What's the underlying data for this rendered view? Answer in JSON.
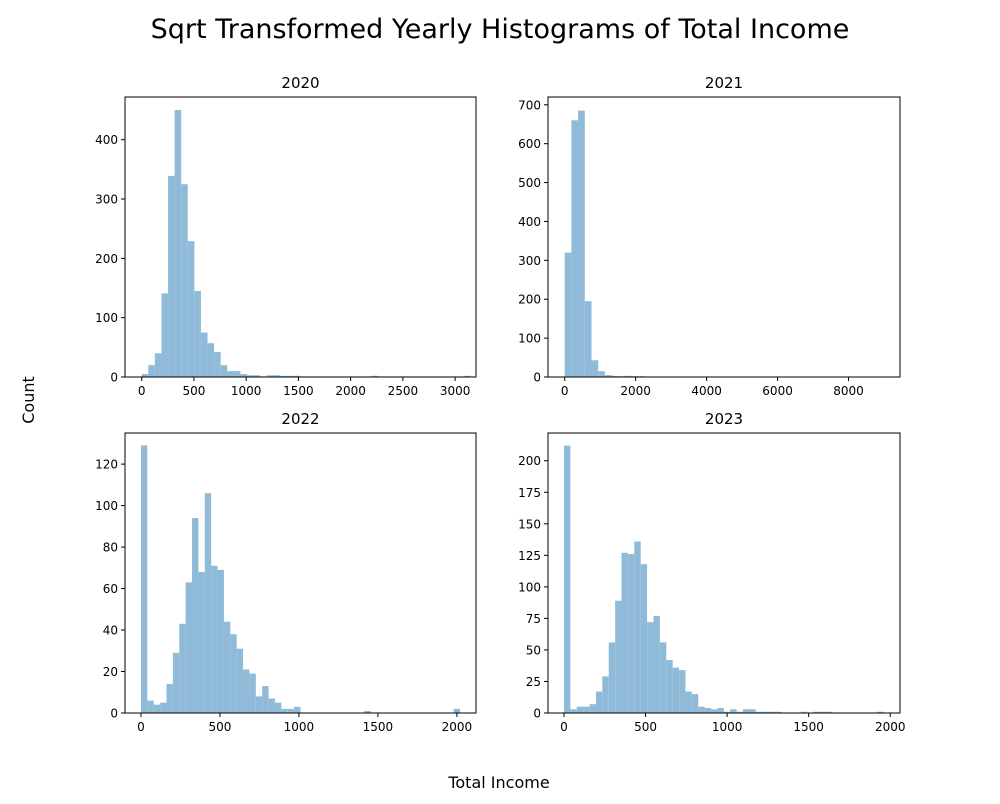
{
  "figure": {
    "title": "Sqrt Transformed Yearly Histograms of Total Income",
    "xlabel": "Total Income",
    "ylabel": "Count",
    "bar_color": "#8fbbd9"
  },
  "chart_data": [
    {
      "type": "bar",
      "title": "2020",
      "xlim": [
        -160,
        3200
      ],
      "ylim": [
        0,
        472
      ],
      "xticks": [
        0,
        500,
        1000,
        1500,
        2000,
        2500,
        3000
      ],
      "yticks": [
        0,
        100,
        200,
        300,
        400
      ],
      "bin_start": 0,
      "bin_width": 63,
      "values": [
        5,
        20,
        40,
        141,
        339,
        450,
        325,
        229,
        145,
        75,
        57,
        42,
        20,
        10,
        10,
        5,
        3,
        3,
        1,
        3,
        3,
        2,
        2,
        2,
        1,
        1,
        1,
        1,
        1,
        1,
        1,
        1,
        1,
        1,
        1,
        2,
        1,
        1,
        1,
        1,
        1,
        1,
        1,
        1,
        1,
        1,
        1,
        1,
        1,
        2
      ]
    },
    {
      "type": "bar",
      "title": "2021",
      "xlim": [
        -470,
        9450
      ],
      "ylim": [
        0,
        720
      ],
      "xticks": [
        0,
        2000,
        4000,
        6000,
        8000
      ],
      "yticks": [
        0,
        100,
        200,
        300,
        400,
        500,
        600,
        700
      ],
      "bin_start": 0,
      "bin_width": 189,
      "values": [
        320,
        660,
        685,
        195,
        43,
        15,
        5,
        3,
        2,
        3,
        2,
        2,
        1,
        1,
        1,
        1,
        1,
        1,
        1,
        1,
        1,
        1,
        1,
        1,
        1,
        1,
        1,
        1,
        1,
        1,
        1,
        1,
        1,
        1,
        1,
        1,
        1,
        1,
        1,
        1,
        1,
        1,
        1,
        1,
        1,
        1,
        1,
        1,
        1,
        1
      ]
    },
    {
      "type": "bar",
      "title": "2022",
      "xlim": [
        -101,
        2121
      ],
      "ylim": [
        0,
        135
      ],
      "xticks": [
        0,
        500,
        1000,
        1500,
        2000
      ],
      "yticks": [
        0,
        20,
        40,
        60,
        80,
        100,
        120
      ],
      "bin_start": 0,
      "bin_width": 40.4,
      "values": [
        129,
        6,
        4,
        5,
        14,
        29,
        43,
        63,
        94,
        68,
        106,
        71,
        69,
        44,
        38,
        31,
        21,
        19,
        8,
        13,
        7,
        5,
        2,
        2,
        3,
        0,
        0,
        0,
        0,
        0,
        0,
        0,
        0,
        0,
        0,
        1,
        0,
        0,
        0,
        0,
        0,
        0,
        0,
        0,
        0,
        0,
        0,
        0,
        0,
        2
      ]
    },
    {
      "type": "bar",
      "title": "2023",
      "xlim": [
        -98,
        2060
      ],
      "ylim": [
        0,
        222
      ],
      "xticks": [
        0,
        500,
        1000,
        1500,
        2000
      ],
      "yticks": [
        0,
        25,
        50,
        75,
        100,
        125,
        150,
        175,
        200
      ],
      "bin_start": 0,
      "bin_width": 39.2,
      "values": [
        212,
        3,
        5,
        5,
        7,
        17,
        29,
        56,
        89,
        127,
        126,
        136,
        118,
        72,
        77,
        56,
        42,
        36,
        34,
        17,
        15,
        5,
        4,
        3,
        4,
        1,
        3,
        1,
        3,
        3,
        1,
        1,
        1,
        1,
        0,
        0,
        0,
        1,
        0,
        1,
        1,
        1,
        0,
        0,
        0,
        0,
        0,
        0,
        0,
        1
      ]
    }
  ]
}
